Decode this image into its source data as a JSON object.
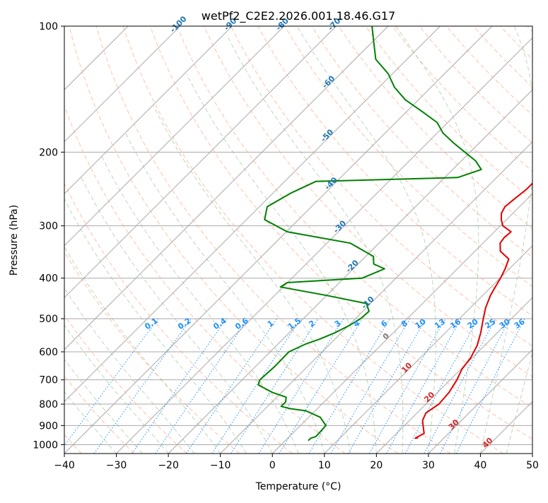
{
  "chart_data": {
    "type": "line",
    "subtype": "skew-t log-p",
    "title": "wetPf2_C2E2.2026.001.18.46.G17",
    "xlabel": "Temperature (°C)",
    "ylabel": "Pressure (hPa)",
    "xlim": [
      -40,
      50
    ],
    "ylim": [
      1050,
      100
    ],
    "y_scale": "log",
    "x_ticks": [
      "−40",
      "−30",
      "−20",
      "−10",
      "0",
      "10",
      "20",
      "30",
      "40",
      "50"
    ],
    "y_ticks": [
      "100",
      "200",
      "300",
      "400",
      "500",
      "600",
      "700",
      "800",
      "900",
      "1000"
    ],
    "grid": true,
    "colors": {
      "temperature": "#e00000",
      "dewpoint": "#008000",
      "isotherm": "#a9a9a9",
      "dry_adiabat": "#ffa07a",
      "moist_adiabat": "#8fbc8f",
      "mixing_ratio": "#1e90ff",
      "isotherm_label": "#1f77b4",
      "zero_label": "#808080",
      "warm_label": "#d62728"
    },
    "isotherm_labels": [
      {
        "t": -100,
        "text": "-100"
      },
      {
        "t": -90,
        "text": "-90"
      },
      {
        "t": -80,
        "text": "-80"
      },
      {
        "t": -70,
        "text": "-70"
      },
      {
        "t": -60,
        "text": "-60"
      },
      {
        "t": -50,
        "text": "-50"
      },
      {
        "t": -40,
        "text": "-40"
      },
      {
        "t": -30,
        "text": "-30"
      },
      {
        "t": -20,
        "text": "-20"
      },
      {
        "t": -10,
        "text": "-10"
      },
      {
        "t": 0,
        "text": "0"
      },
      {
        "t": 10,
        "text": "10"
      },
      {
        "t": 20,
        "text": "20"
      },
      {
        "t": 30,
        "text": "30"
      },
      {
        "t": 40,
        "text": "40"
      }
    ],
    "mixing_ratio_labels": [
      "0.1",
      "0.2",
      "0.4",
      "0.6",
      "1",
      "1.5",
      "2",
      "3",
      "4",
      "6",
      "8",
      "10",
      "13",
      "16",
      "20",
      "25",
      "30",
      "36"
    ],
    "series": [
      {
        "type": "temperature",
        "points": [
          [
            25.0,
            963
          ],
          [
            24.5,
            965
          ],
          [
            25.3,
            940
          ],
          [
            23.8,
            905
          ],
          [
            22.5,
            875
          ],
          [
            21.7,
            840
          ],
          [
            22.5,
            800
          ],
          [
            22.2,
            750
          ],
          [
            21.3,
            700
          ],
          [
            20.2,
            660
          ],
          [
            19.7,
            620
          ],
          [
            18.6,
            580
          ],
          [
            16.8,
            540
          ],
          [
            14.6,
            500
          ],
          [
            12.9,
            470
          ],
          [
            11.5,
            440
          ],
          [
            10.8,
            420
          ],
          [
            10.1,
            400
          ],
          [
            9.2,
            380
          ],
          [
            8.0,
            360
          ],
          [
            4.9,
            345
          ],
          [
            3.3,
            330
          ],
          [
            3.0,
            320
          ],
          [
            3.2,
            310
          ],
          [
            0.5,
            300
          ],
          [
            -1.0,
            290
          ],
          [
            -2.2,
            280
          ],
          [
            -2.8,
            270
          ],
          [
            -2.5,
            260
          ],
          [
            -2.0,
            245
          ],
          [
            -2.0,
            235
          ],
          [
            -3.3,
            220
          ],
          [
            -3.5,
            210
          ],
          [
            -4.0,
            200
          ],
          [
            -4.4,
            190
          ],
          [
            -4.8,
            180
          ],
          [
            -5.8,
            170
          ],
          [
            -7.0,
            160
          ],
          [
            -8.9,
            150
          ],
          [
            -10.5,
            140
          ],
          [
            -12.2,
            130
          ],
          [
            -14.0,
            120
          ],
          [
            -16.6,
            110
          ],
          [
            -19.3,
            100
          ]
        ]
      },
      {
        "type": "dewpoint",
        "points": [
          [
            4.4,
            978
          ],
          [
            4.4,
            965
          ],
          [
            5.1,
            957
          ],
          [
            4.9,
            900
          ],
          [
            2.2,
            860
          ],
          [
            -1.8,
            830
          ],
          [
            -5.3,
            820
          ],
          [
            -7.4,
            810
          ],
          [
            -7.4,
            790
          ],
          [
            -8.2,
            770
          ],
          [
            -11.8,
            750
          ],
          [
            -15.9,
            720
          ],
          [
            -16.6,
            700
          ],
          [
            -16.3,
            650
          ],
          [
            -16.4,
            600
          ],
          [
            -14.7,
            575
          ],
          [
            -13.0,
            560
          ],
          [
            -11.2,
            540
          ],
          [
            -9.9,
            520
          ],
          [
            -9.0,
            500
          ],
          [
            -8.8,
            480
          ],
          [
            -10.8,
            460
          ],
          [
            -20.0,
            440
          ],
          [
            -30.5,
            420
          ],
          [
            -30.0,
            410
          ],
          [
            -16.5,
            400
          ],
          [
            -14.0,
            380
          ],
          [
            -17.0,
            370
          ],
          [
            -18.5,
            355
          ],
          [
            -25.5,
            330
          ],
          [
            -39.8,
            310
          ],
          [
            -46.5,
            290
          ],
          [
            -48.5,
            270
          ],
          [
            -46.5,
            250
          ],
          [
            -44.0,
            235
          ],
          [
            -17.5,
            230
          ],
          [
            -14.5,
            220
          ],
          [
            -17.2,
            210
          ],
          [
            -21.0,
            200
          ],
          [
            -25.0,
            190
          ],
          [
            -28.9,
            180
          ],
          [
            -32.0,
            170
          ],
          [
            -37.0,
            160
          ],
          [
            -42.5,
            150
          ],
          [
            -47.0,
            140
          ],
          [
            -50.8,
            130
          ],
          [
            -56.0,
            120
          ],
          [
            -59.4,
            110
          ],
          [
            -63.1,
            100
          ]
        ]
      }
    ]
  }
}
